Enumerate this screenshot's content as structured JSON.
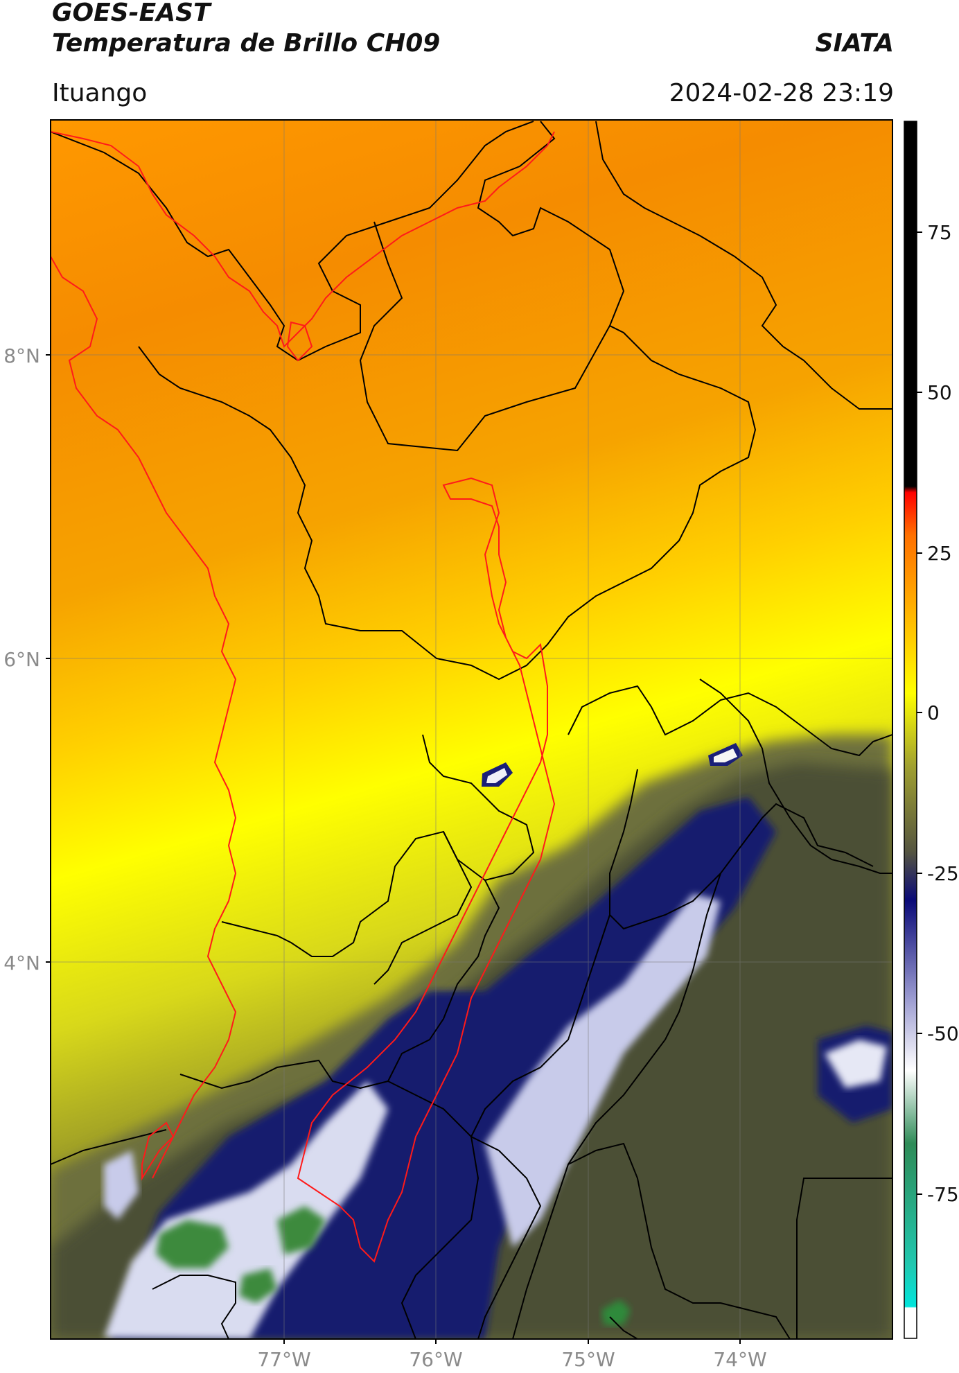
{
  "header": {
    "satellite": "GOES-EAST",
    "product": "Temperatura de Brillo CH09",
    "organization": "SIATA",
    "region": "Ituango",
    "datetime": "2024-02-28 23:19"
  },
  "map": {
    "lat_labels": [
      "8°N",
      "6°N",
      "4°N"
    ],
    "lon_labels": [
      "77°W",
      "76°W",
      "75°W",
      "74°W"
    ],
    "colors": {
      "warm_orange": "#f28c00",
      "orange": "#ff9e00",
      "yellow": "#ffff00",
      "olive": "#8e8e1e",
      "dark_olive": "#555a3a",
      "navy": "#1a1f78",
      "white_cloud": "#f5f5f5",
      "green_core": "#3c8a3c",
      "boundary_black": "#000000",
      "boundary_red": "#ff0000"
    }
  },
  "colorbar": {
    "tick_labels": [
      "75",
      "50",
      "25",
      "0",
      "-25",
      "-50",
      "-75"
    ],
    "stops": [
      "#ffffff",
      "#00e0d8",
      "#2e8b57",
      "#ffffff",
      "#8a8ac8",
      "#0a0a78",
      "#8c8c28",
      "#ffff00",
      "#ff9a00",
      "#ff0000",
      "#000000"
    ]
  }
}
